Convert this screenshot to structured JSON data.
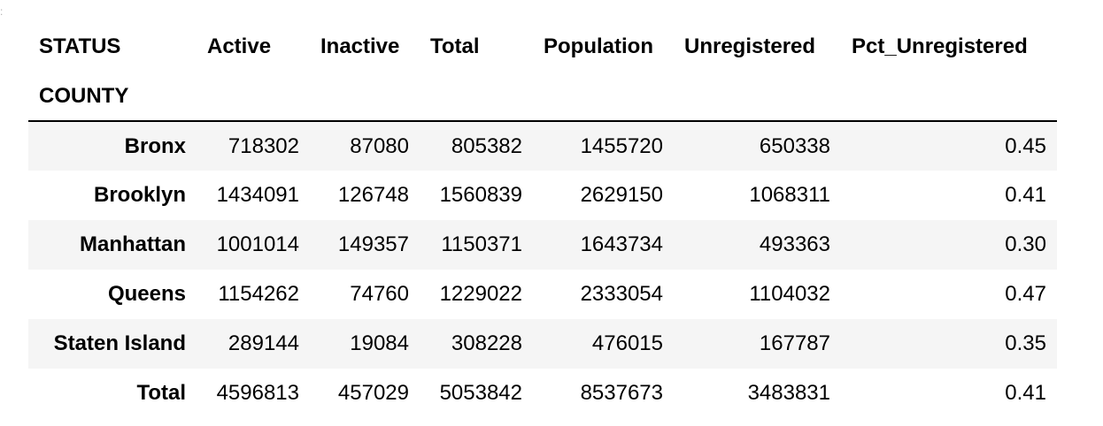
{
  "table": {
    "columns_name": "STATUS",
    "index_name": "COUNTY",
    "columns": [
      "Active",
      "Inactive",
      "Total",
      "Population",
      "Unregistered",
      "Pct_Unregistered"
    ],
    "rows": [
      {
        "index": "Bronx",
        "cells": [
          "718302",
          "87080",
          "805382",
          "1455720",
          "650338",
          "0.45"
        ]
      },
      {
        "index": "Brooklyn",
        "cells": [
          "1434091",
          "126748",
          "1560839",
          "2629150",
          "1068311",
          "0.41"
        ]
      },
      {
        "index": "Manhattan",
        "cells": [
          "1001014",
          "149357",
          "1150371",
          "1643734",
          "493363",
          "0.30"
        ]
      },
      {
        "index": "Queens",
        "cells": [
          "1154262",
          "74760",
          "1229022",
          "2333054",
          "1104032",
          "0.47"
        ]
      },
      {
        "index": "Staten Island",
        "cells": [
          "289144",
          "19084",
          "308228",
          "476015",
          "167787",
          "0.35"
        ]
      },
      {
        "index": "Total",
        "cells": [
          "4596813",
          "457029",
          "5053842",
          "8537673",
          "3483831",
          "0.41"
        ]
      }
    ]
  }
}
